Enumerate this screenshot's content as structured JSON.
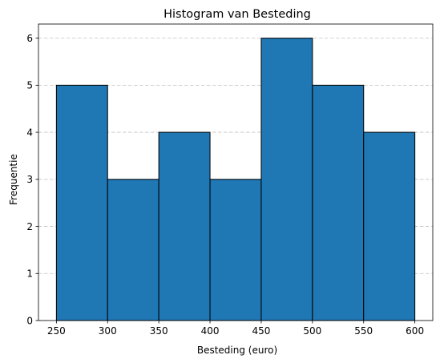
{
  "chart_data": {
    "type": "bar",
    "title": "Histogram van Besteding",
    "xlabel": "Besteding (euro)",
    "ylabel": "Frequentie",
    "bins": [
      {
        "start": 250,
        "end": 300,
        "count": 5
      },
      {
        "start": 300,
        "end": 350,
        "count": 3
      },
      {
        "start": 350,
        "end": 400,
        "count": 4
      },
      {
        "start": 400,
        "end": 450,
        "count": 3
      },
      {
        "start": 450,
        "end": 500,
        "count": 6
      },
      {
        "start": 500,
        "end": 550,
        "count": 5
      },
      {
        "start": 550,
        "end": 600,
        "count": 4
      }
    ],
    "x_ticks": [
      250,
      300,
      350,
      400,
      450,
      500,
      550,
      600
    ],
    "y_ticks": [
      0,
      1,
      2,
      3,
      4,
      5,
      6
    ],
    "xlim": [
      232.5,
      617.5
    ],
    "ylim": [
      0,
      6.3
    ],
    "grid": "y-dashed",
    "legend": "none",
    "bar_color": "#1f77b4",
    "edge_color": "#000000"
  }
}
